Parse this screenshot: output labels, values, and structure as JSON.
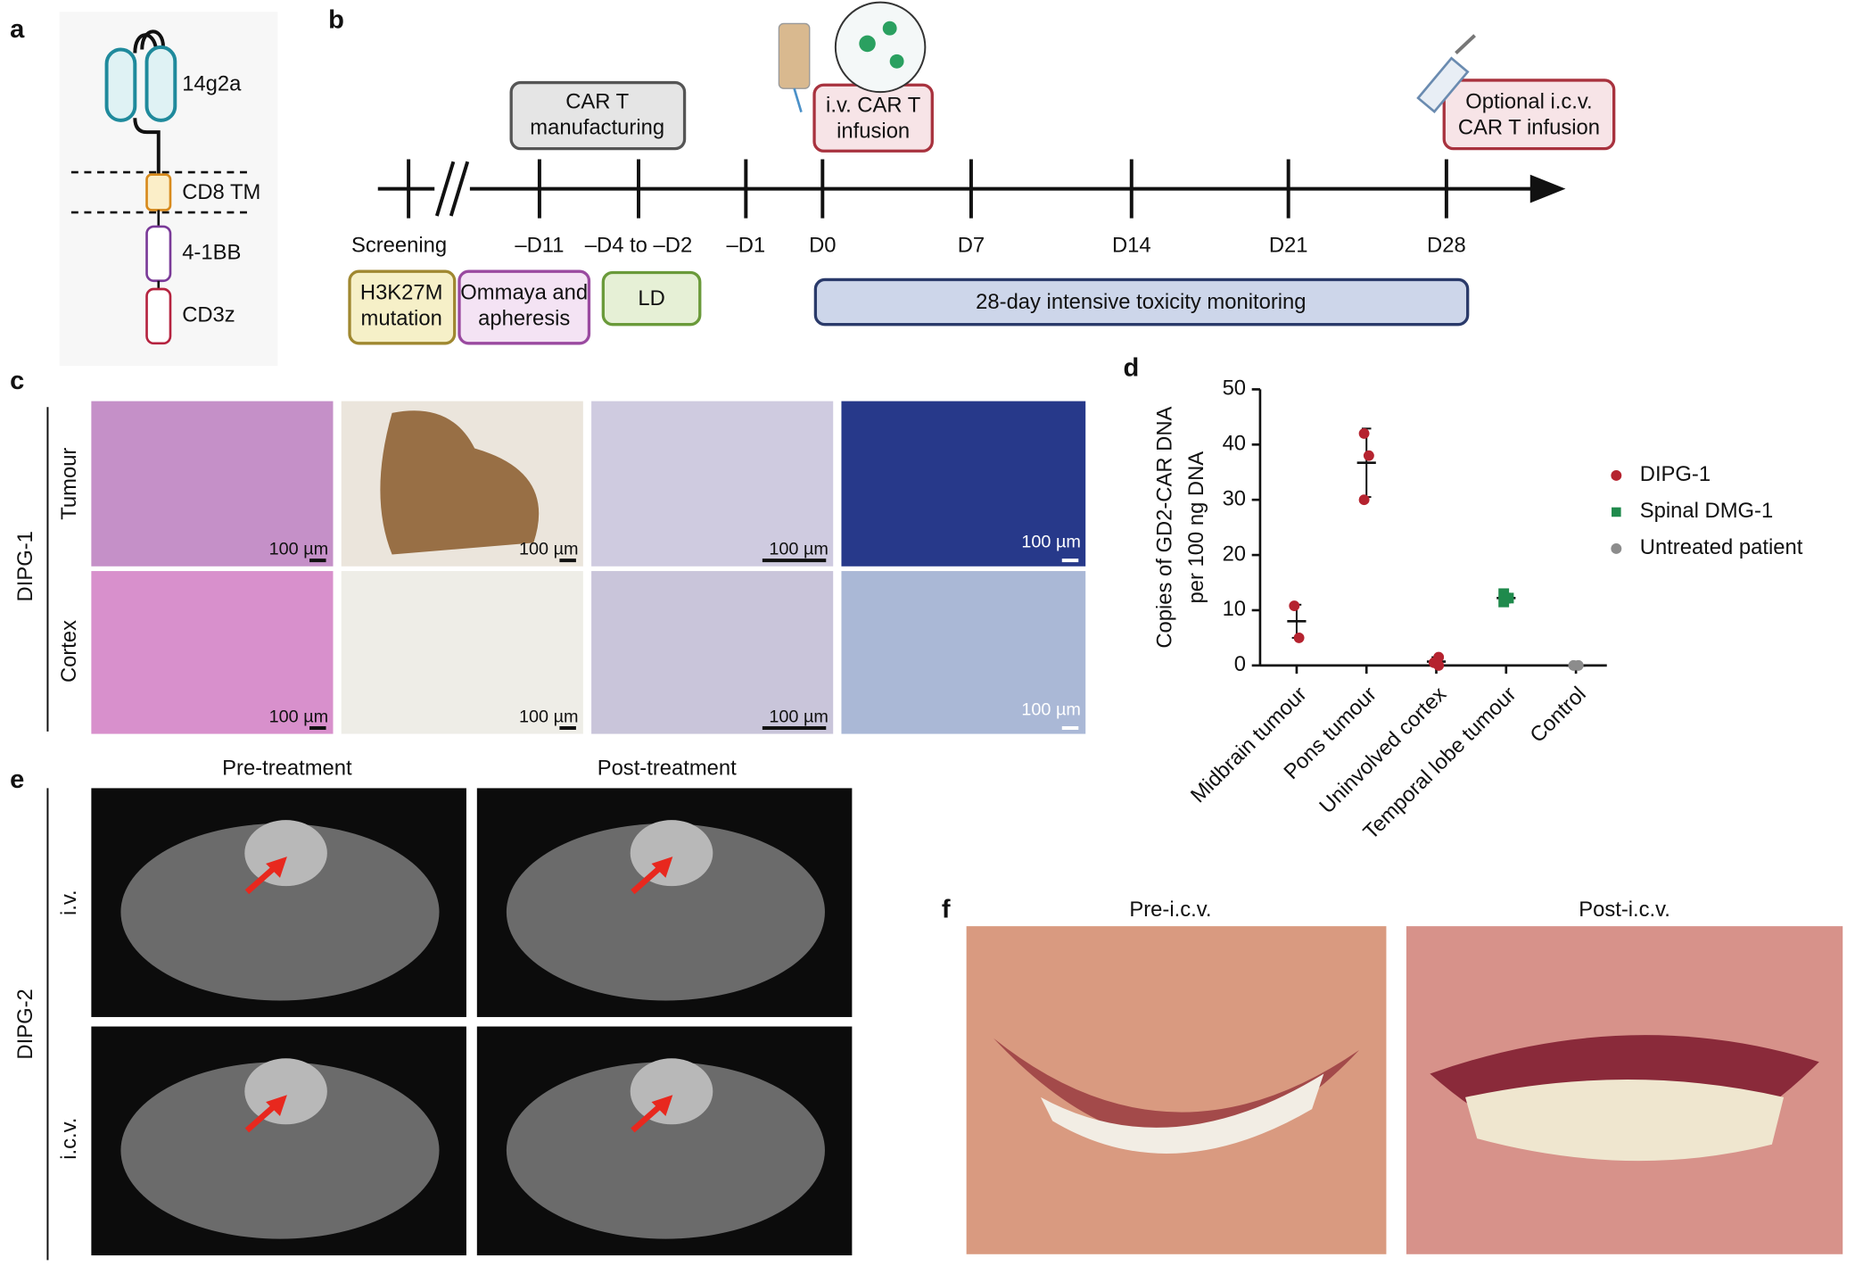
{
  "panel_a": {
    "label": "a",
    "domains": [
      "14g2a",
      "CD8 TM",
      "4-1BB",
      "CD3z"
    ]
  },
  "panel_b": {
    "label": "b",
    "top_boxes": [
      [
        "CAR T",
        "manufacturing"
      ],
      [
        "i.v. CAR T",
        "infusion"
      ],
      [
        "Optional i.c.v.",
        "CAR T infusion"
      ]
    ],
    "timeline": [
      "Screening",
      "–D11",
      "–D4 to –D2",
      "–D1",
      "D0",
      "D7",
      "D14",
      "D21",
      "D28"
    ],
    "bottom_boxes": [
      [
        "H3K27M",
        "mutation"
      ],
      [
        "Ommaya and",
        "apheresis"
      ],
      [
        "LD"
      ],
      [
        "28-day intensive toxicity monitoring"
      ]
    ]
  },
  "panel_c": {
    "label": "c",
    "group": "DIPG-1",
    "rows": [
      "Tumour",
      "Cortex"
    ],
    "scale_bar": "100 µm"
  },
  "chart_data": {
    "type": "dotplot",
    "label": "d",
    "y_label": [
      "Copies of GD2-CAR DNA",
      "per 100 ng DNA"
    ],
    "categories": [
      "Midbrain tumour",
      "Pons tumour",
      "Uninvolved cortex",
      "Temporal lobe tumour",
      "Control"
    ],
    "ylim": [
      0,
      50
    ],
    "yticks": [
      0,
      10,
      20,
      30,
      40,
      50
    ],
    "series": [
      {
        "name": "DIPG-1",
        "color": "#b5232f",
        "marker": "circle",
        "x": [
          0,
          0,
          1,
          1,
          1,
          2,
          2,
          2
        ],
        "values": [
          10.8,
          5,
          42,
          38,
          30,
          1.5,
          0.5,
          0
        ]
      },
      {
        "name": "Spinal DMG-1",
        "color": "#1f8a4c",
        "marker": "square",
        "x": [
          3,
          3,
          3
        ],
        "values": [
          13,
          12.2,
          11.5
        ]
      },
      {
        "name": "Untreated patient",
        "color": "#8c8c8c",
        "marker": "circle",
        "x": [
          4,
          4
        ],
        "values": [
          0,
          0
        ]
      }
    ],
    "summary": [
      {
        "x": 0,
        "mean": 8,
        "sd": 3
      },
      {
        "x": 1,
        "mean": 36.7,
        "sd": 6.2
      },
      {
        "x": 2,
        "mean": 0.7,
        "sd": 0.8
      },
      {
        "x": 3,
        "mean": 12.2,
        "sd": 0.8
      },
      {
        "x": 4,
        "mean": 0,
        "sd": 0
      }
    ]
  },
  "panel_e": {
    "label": "e",
    "columns": [
      "Pre-treatment",
      "Post-treatment"
    ],
    "group": "DIPG-2",
    "rows": [
      "i.v.",
      "i.c.v."
    ]
  },
  "panel_f": {
    "label": "f",
    "columns": [
      "Pre-i.c.v.",
      "Post-i.c.v."
    ]
  }
}
